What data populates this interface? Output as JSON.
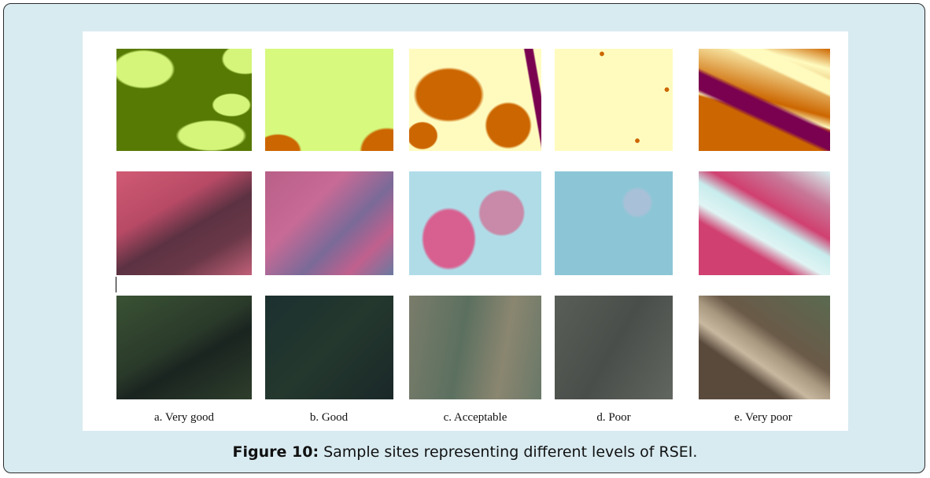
{
  "columns": [
    "a. Very good",
    "b. Good",
    "c. Acceptable",
    "d. Poor",
    "e. Very poor"
  ],
  "caption": {
    "label": "Figure 10:",
    "text": "Sample sites representing different levels of RSEI."
  }
}
